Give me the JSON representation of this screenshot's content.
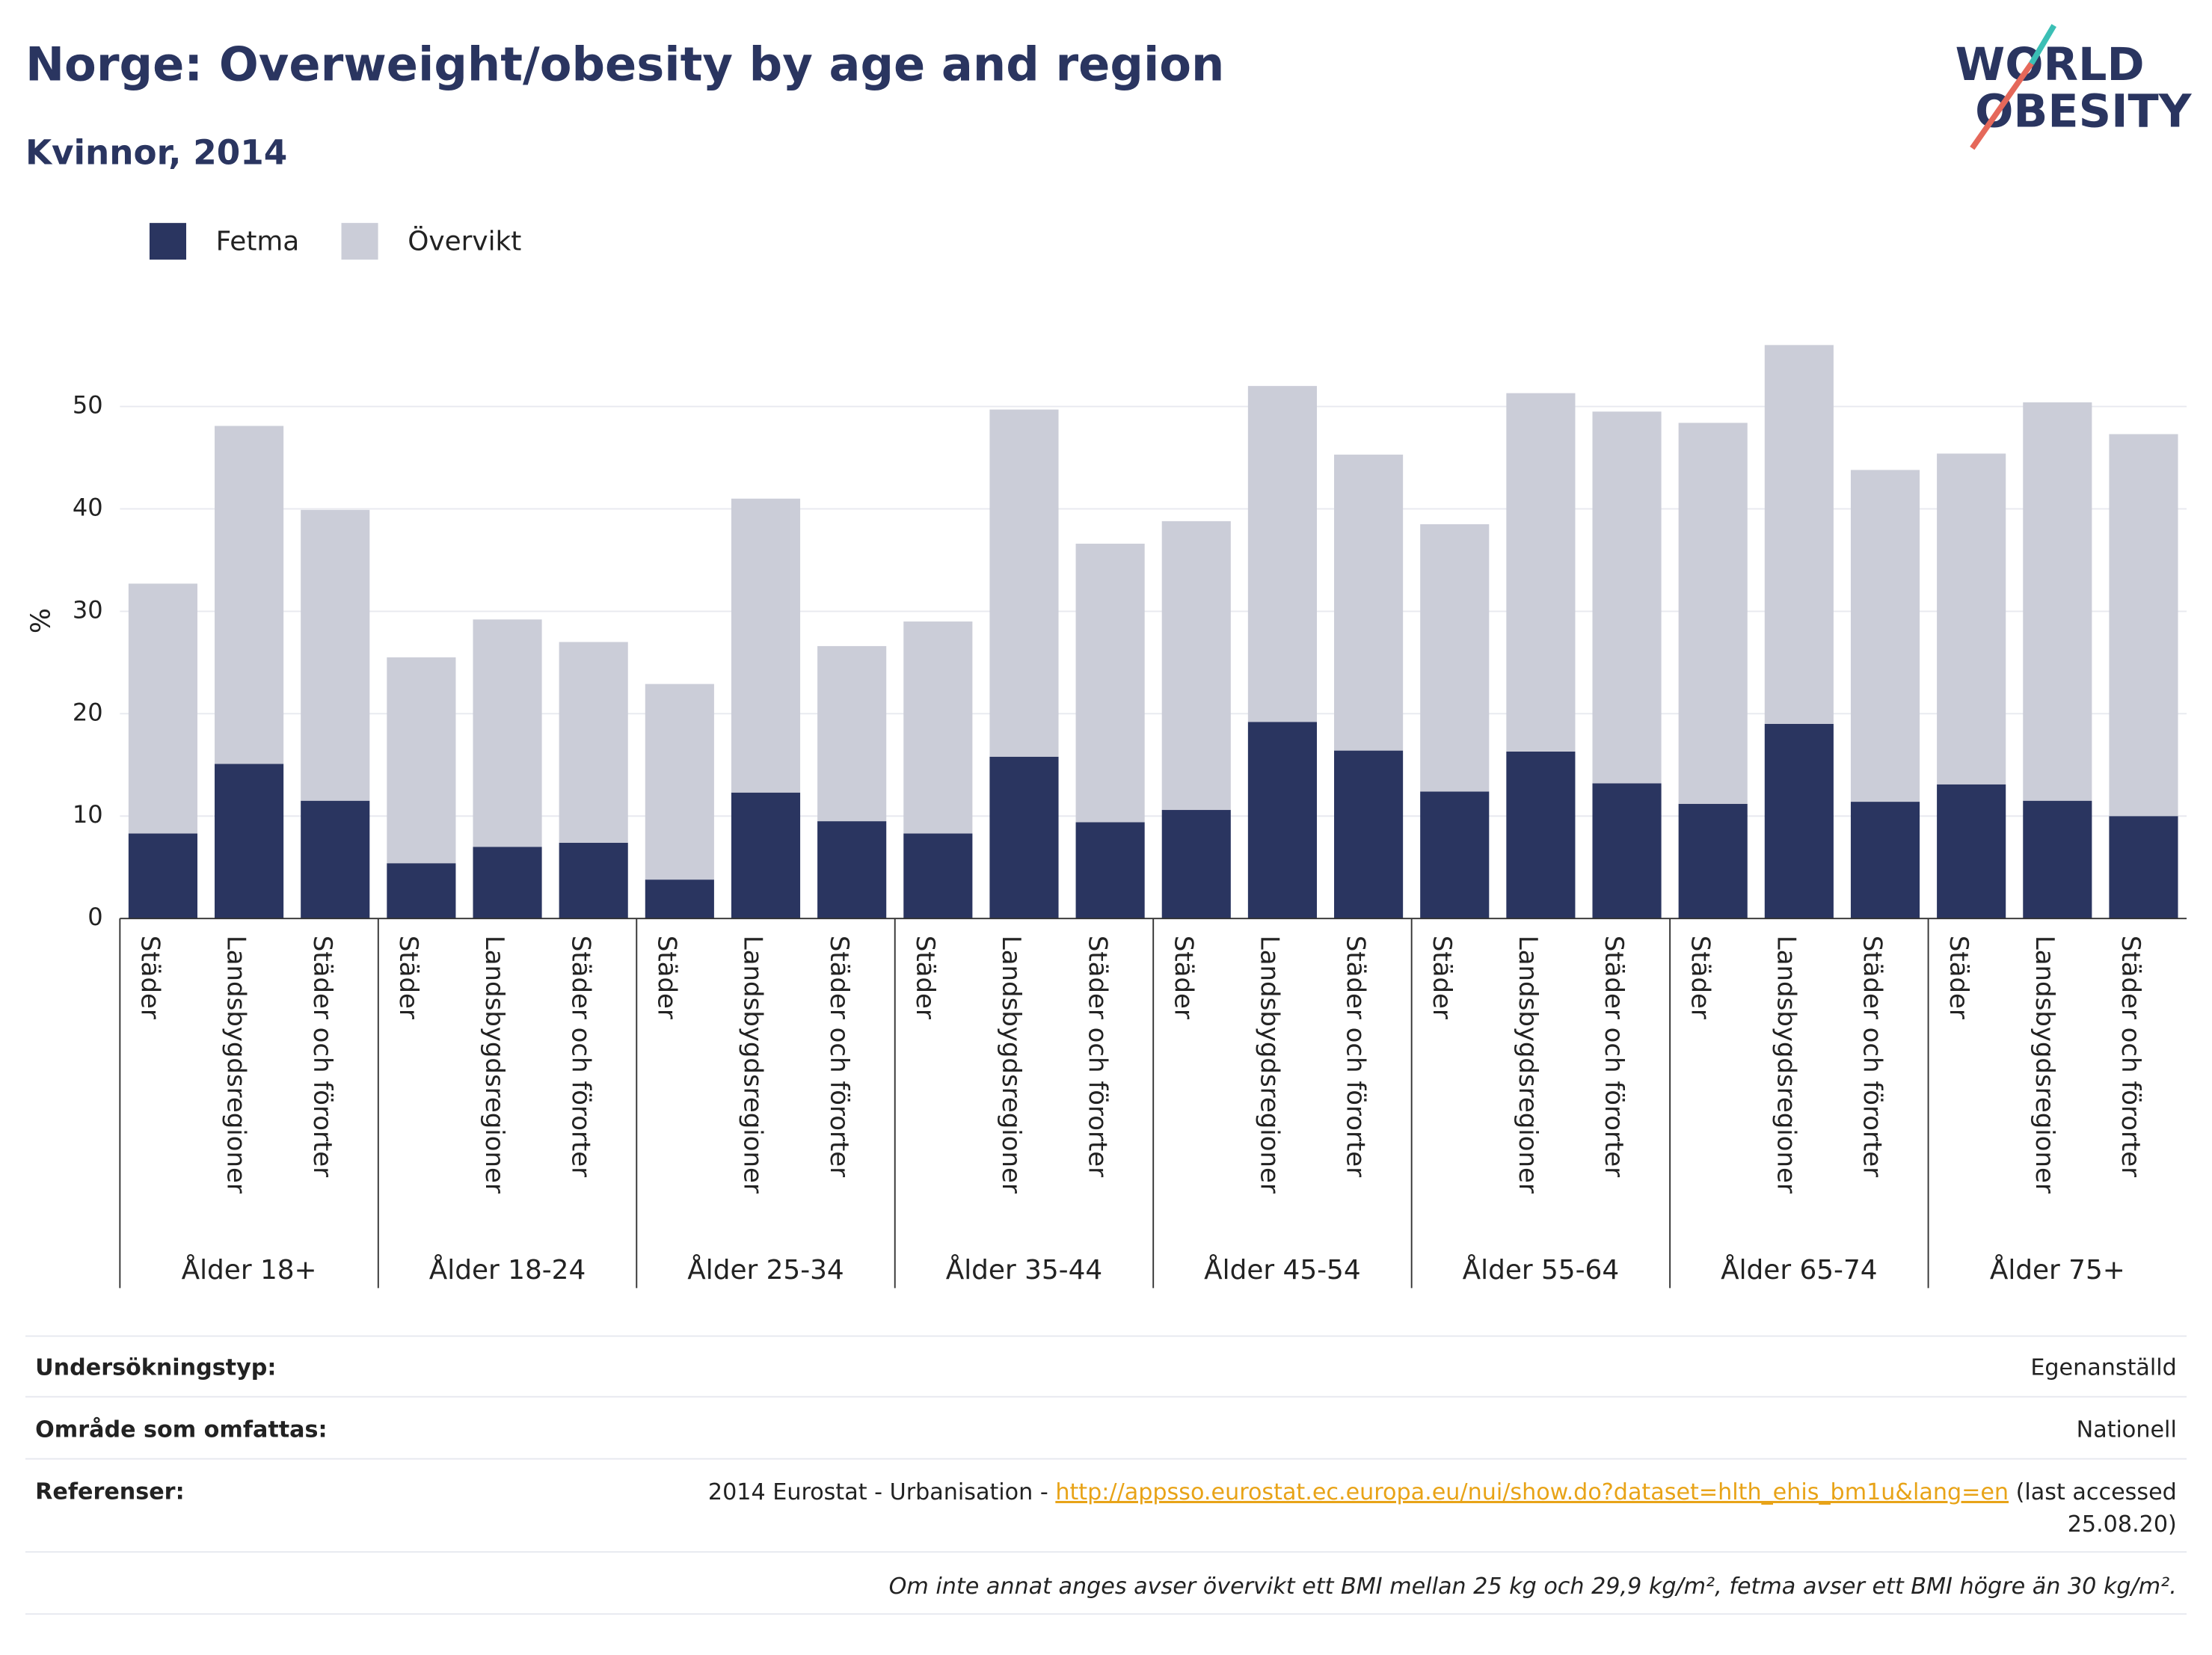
{
  "chart_data": {
    "type": "stacked-bar",
    "title": "Norge: Overweight/obesity by age and region",
    "subtitle": "Kvinnor, 2014",
    "y_label": "%",
    "groups": [
      "Ålder 18+",
      "Ålder 18-24",
      "Ålder 25-34",
      "Ålder 35-44",
      "Ålder 45-54",
      "Ålder 55-64",
      "Ålder 65-74",
      "Ålder 75+"
    ],
    "categories": [
      "Städer",
      "Landsbygdsregioner",
      "Städer och förorter",
      "Städer",
      "Landsbygdsregioner",
      "Städer och förorter",
      "Städer",
      "Landsbygdsregioner",
      "Städer och förorter",
      "Städer",
      "Landsbygdsregioner",
      "Städer och förorter",
      "Städer",
      "Landsbygdsregioner",
      "Städer och förorter",
      "Städer",
      "Landsbygdsregioner",
      "Städer och förorter",
      "Städer",
      "Landsbygdsregioner",
      "Städer och förorter",
      "Städer",
      "Landsbygdsregioner",
      "Städer och förorter"
    ],
    "series": [
      {
        "name": "Fetma",
        "color": "#2a3560",
        "values": [
          8.3,
          15.1,
          11.5,
          5.4,
          7.0,
          7.4,
          3.8,
          12.3,
          9.5,
          8.3,
          15.8,
          9.4,
          10.6,
          19.2,
          16.4,
          12.4,
          16.3,
          13.2,
          11.2,
          19.0,
          11.4,
          13.1,
          11.5,
          10.0
        ]
      },
      {
        "name": "Övervikt",
        "color": "#cbcdd8",
        "values": [
          24.4,
          33.0,
          28.4,
          20.1,
          22.2,
          19.6,
          19.1,
          28.7,
          17.1,
          20.7,
          33.9,
          27.2,
          28.2,
          32.8,
          28.9,
          26.1,
          35.0,
          36.3,
          37.2,
          37.0,
          32.4,
          32.3,
          38.9,
          37.3
        ]
      }
    ],
    "ylim": [
      0,
      58
    ],
    "yticks": [
      0,
      10,
      20,
      30,
      40,
      50
    ],
    "grid": true,
    "legend": "top-left"
  },
  "logo": [
    "WORLD",
    "OBESITY"
  ],
  "footer": {
    "rows": [
      [
        "Undersökningstyp:",
        "Egenanställd"
      ],
      [
        "Område som omfattas:",
        "Nationell"
      ]
    ],
    "references_label": "Referenser:",
    "references": {
      "prefix": "2014 Eurostat - Urbanisation - ",
      "link": "http://appsso.eurostat.ec.europa.eu/nui/show.do?dataset=hlth_ehis_bm1u&lang=en",
      "suffix": " (last accessed",
      "suffix2": "25.08.20)"
    },
    "note": "Om inte annat anges avser övervikt ett BMI mellan 25 kg och 29,9 kg/m², fetma avser ett BMI högre än 30 kg/m²."
  }
}
